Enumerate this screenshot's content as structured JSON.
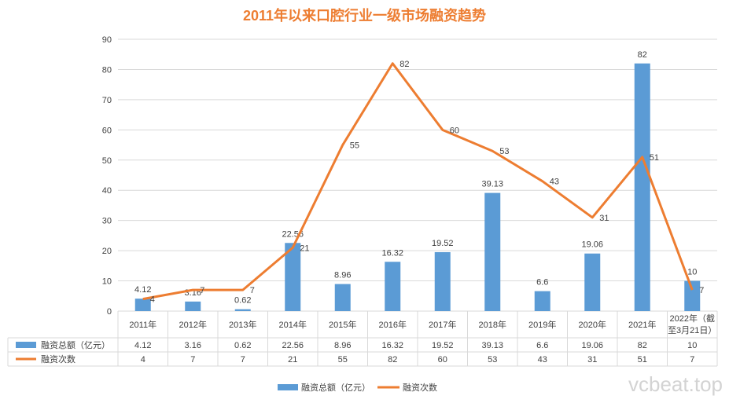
{
  "chart_data": {
    "type": "bar+line",
    "title": "2011年以来口腔行业一级市场融资趋势",
    "categories": [
      "2011年",
      "2012年",
      "2013年",
      "2014年",
      "2015年",
      "2016年",
      "2017年",
      "2018年",
      "2019年",
      "2020年",
      "2021年",
      "2022年（截至3月21日）"
    ],
    "category_lines": [
      [
        "2011年"
      ],
      [
        "2012年"
      ],
      [
        "2013年"
      ],
      [
        "2014年"
      ],
      [
        "2015年"
      ],
      [
        "2016年"
      ],
      [
        "2017年"
      ],
      [
        "2018年"
      ],
      [
        "2019年"
      ],
      [
        "2020年"
      ],
      [
        "2021年"
      ],
      [
        "2022年（截",
        "至3月21日）"
      ]
    ],
    "ylim": [
      0,
      90
    ],
    "yticks": [
      0,
      10,
      20,
      30,
      40,
      50,
      60,
      70,
      80,
      90
    ],
    "grid": true,
    "legend_placement": "bottom",
    "data_table": true,
    "series": [
      {
        "name": "融资总额（亿元）",
        "type": "bar",
        "color": "#5B9BD5",
        "values": [
          4.12,
          3.16,
          0.62,
          22.56,
          8.96,
          16.32,
          19.52,
          39.13,
          6.6,
          19.06,
          82,
          10
        ],
        "labels": [
          "4.12",
          "3.16",
          "0.62",
          "22.56",
          "8.96",
          "16.32",
          "19.52",
          "39.13",
          "6.6",
          "19.06",
          "82",
          "10"
        ]
      },
      {
        "name": "融资次数",
        "type": "line",
        "color": "#ED7D31",
        "values": [
          4,
          7,
          7,
          21,
          55,
          82,
          60,
          53,
          43,
          31,
          51,
          7
        ],
        "labels": [
          "4",
          "7",
          "7",
          "21",
          "55",
          "82",
          "60",
          "53",
          "43",
          "31",
          "51",
          "7"
        ]
      }
    ]
  },
  "watermark": "vcbeat.top"
}
